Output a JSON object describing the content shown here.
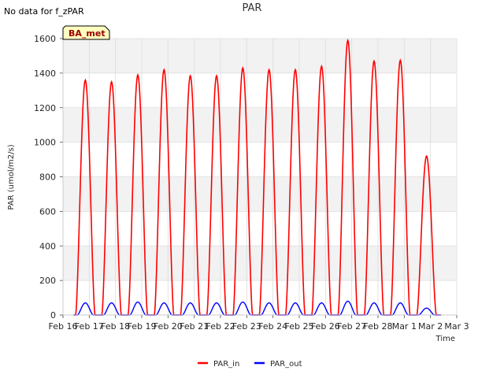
{
  "note": "No data for f_zPAR",
  "chart_data": {
    "type": "line",
    "title": "PAR",
    "xlabel": "Time",
    "ylabel": "PAR (umol/m2/s)",
    "badge": "BA_met",
    "ylim": [
      0,
      1600
    ],
    "xlim": [
      0,
      15
    ],
    "yticks": [
      0,
      200,
      400,
      600,
      800,
      1000,
      1200,
      1400,
      1600
    ],
    "xticks": [
      0,
      1,
      2,
      3,
      4,
      5,
      6,
      7,
      8,
      9,
      10,
      11,
      12,
      13,
      14,
      15
    ],
    "xtick_labels": [
      "Feb 16",
      "Feb 17",
      "Feb 18",
      "Feb 19",
      "Feb 20",
      "Feb 21",
      "Feb 22",
      "Feb 23",
      "Feb 24",
      "Feb 25",
      "Feb 26",
      "Feb 27",
      "Feb 28",
      "Mar 1",
      "Mar 2",
      "Mar 3"
    ],
    "x_unit": "days since Feb 16",
    "grid": true,
    "series": [
      {
        "name": "PAR_in",
        "color": "#ff0000",
        "daily_peaks": [
          {
            "day": 0.85,
            "peak": 1360
          },
          {
            "day": 1.85,
            "peak": 1350
          },
          {
            "day": 2.85,
            "peak": 1390
          },
          {
            "day": 3.85,
            "peak": 1420
          },
          {
            "day": 4.85,
            "peak": 1385
          },
          {
            "day": 5.85,
            "peak": 1385
          },
          {
            "day": 6.85,
            "peak": 1430
          },
          {
            "day": 7.85,
            "peak": 1420
          },
          {
            "day": 8.85,
            "peak": 1420
          },
          {
            "day": 9.85,
            "peak": 1440
          },
          {
            "day": 10.85,
            "peak": 1590
          },
          {
            "day": 11.85,
            "peak": 1470
          },
          {
            "day": 12.85,
            "peak": 1475
          },
          {
            "day": 13.85,
            "peak": 920
          }
        ]
      },
      {
        "name": "PAR_out",
        "color": "#0000ff",
        "daily_peaks": [
          {
            "day": 0.85,
            "peak": 70
          },
          {
            "day": 1.85,
            "peak": 70
          },
          {
            "day": 2.85,
            "peak": 75
          },
          {
            "day": 3.85,
            "peak": 70
          },
          {
            "day": 4.85,
            "peak": 70
          },
          {
            "day": 5.85,
            "peak": 70
          },
          {
            "day": 6.85,
            "peak": 75
          },
          {
            "day": 7.85,
            "peak": 70
          },
          {
            "day": 8.85,
            "peak": 70
          },
          {
            "day": 9.85,
            "peak": 70
          },
          {
            "day": 10.85,
            "peak": 80
          },
          {
            "day": 11.85,
            "peak": 70
          },
          {
            "day": 12.85,
            "peak": 70
          },
          {
            "day": 13.85,
            "peak": 40
          }
        ]
      }
    ],
    "legend": [
      "PAR_in",
      "PAR_out"
    ],
    "legend_position": "bottom-center"
  }
}
